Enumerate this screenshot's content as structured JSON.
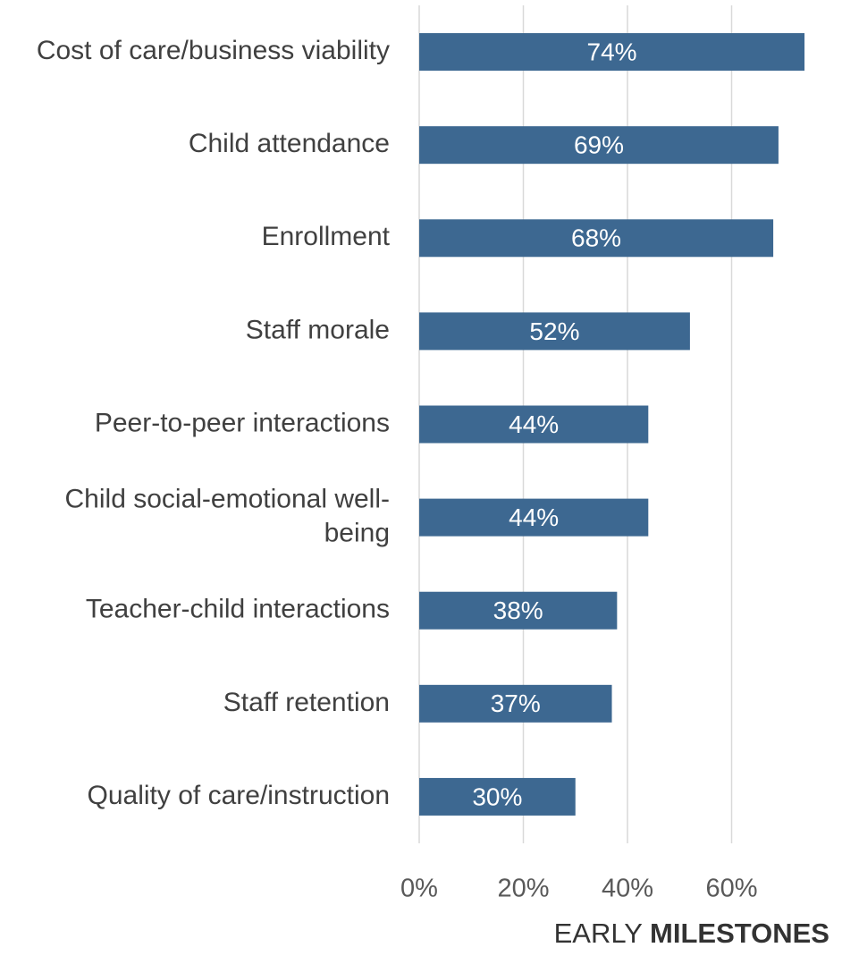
{
  "chart_data": {
    "type": "hbar",
    "categories": [
      "Cost of care/business viability",
      "Child attendance",
      "Enrollment",
      "Staff morale",
      "Peer-to-peer interactions",
      "Child social-emotional well-being",
      "Teacher-child interactions",
      "Staff retention",
      "Quality of care/instruction"
    ],
    "values": [
      74,
      69,
      68,
      52,
      44,
      44,
      38,
      37,
      30
    ],
    "value_labels": [
      "74%",
      "69%",
      "68%",
      "52%",
      "44%",
      "44%",
      "38%",
      "37%",
      "30%"
    ],
    "color": "#3d6891",
    "xlim": [
      0,
      80
    ],
    "xticks": [
      {
        "value": 0,
        "label": "0%"
      },
      {
        "value": 20,
        "label": "20%"
      },
      {
        "value": 40,
        "label": "40%"
      },
      {
        "value": 60,
        "label": "60%"
      }
    ],
    "grid": true
  },
  "footer": {
    "light": "EARLY",
    "bold": "MILESTONES"
  }
}
